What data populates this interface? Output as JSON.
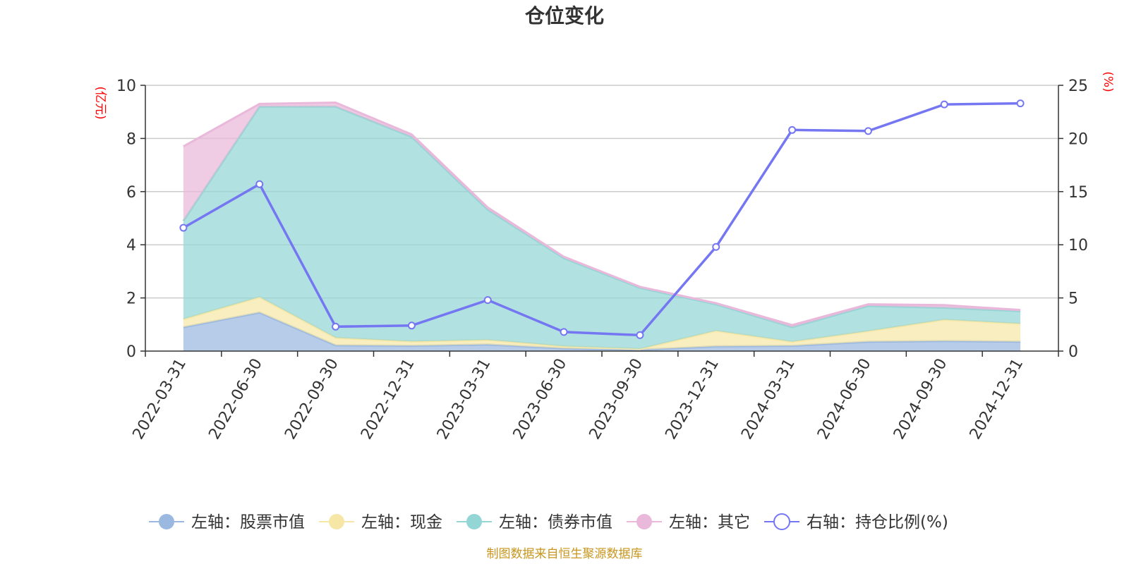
{
  "chart_data": {
    "type": "area",
    "title": "仓位变化",
    "categories": [
      "2022-03-31",
      "2022-06-30",
      "2022-09-30",
      "2022-12-31",
      "2023-03-31",
      "2023-06-30",
      "2023-09-30",
      "2023-12-31",
      "2024-03-31",
      "2024-06-30",
      "2024-09-30",
      "2024-12-31"
    ],
    "left_axis": {
      "unit": "(亿元)",
      "ylim": [
        0,
        10
      ],
      "ticks": [
        "0",
        "2",
        "4",
        "6",
        "8",
        "10"
      ]
    },
    "right_axis": {
      "unit": "(%)",
      "ylim": [
        0,
        25
      ],
      "ticks": [
        "0",
        "5",
        "10",
        "15",
        "20",
        "25"
      ]
    },
    "stacked_series": [
      {
        "name": "左轴：股票市值",
        "color": "#9bb8e0",
        "values": [
          0.9,
          1.45,
          0.22,
          0.2,
          0.25,
          0.1,
          0.05,
          0.18,
          0.2,
          0.35,
          0.38,
          0.35
        ]
      },
      {
        "name": "左轴：现金",
        "color": "#f7e7a6",
        "values": [
          0.3,
          0.58,
          0.28,
          0.16,
          0.17,
          0.08,
          0.03,
          0.58,
          0.15,
          0.4,
          0.8,
          0.68
        ]
      },
      {
        "name": "左轴：债券市值",
        "color": "#94d5d5",
        "values": [
          3.7,
          7.17,
          8.7,
          7.7,
          4.9,
          3.32,
          2.3,
          1.0,
          0.55,
          0.95,
          0.45,
          0.47
        ]
      },
      {
        "name": "左轴：其它",
        "color": "#e9b8da",
        "values": [
          2.8,
          0.1,
          0.15,
          0.09,
          0.08,
          0.05,
          0.04,
          0.04,
          0.08,
          0.06,
          0.1,
          0.05
        ]
      }
    ],
    "line_series": {
      "name": "右轴：持仓比例(%)",
      "color": "#7577f2",
      "values": [
        11.6,
        15.7,
        2.3,
        2.4,
        4.8,
        1.8,
        1.5,
        9.8,
        20.8,
        20.7,
        23.2,
        23.3
      ]
    },
    "legend_position": "bottom",
    "grid": true
  },
  "source_note": "制图数据来自恒生聚源数据库"
}
